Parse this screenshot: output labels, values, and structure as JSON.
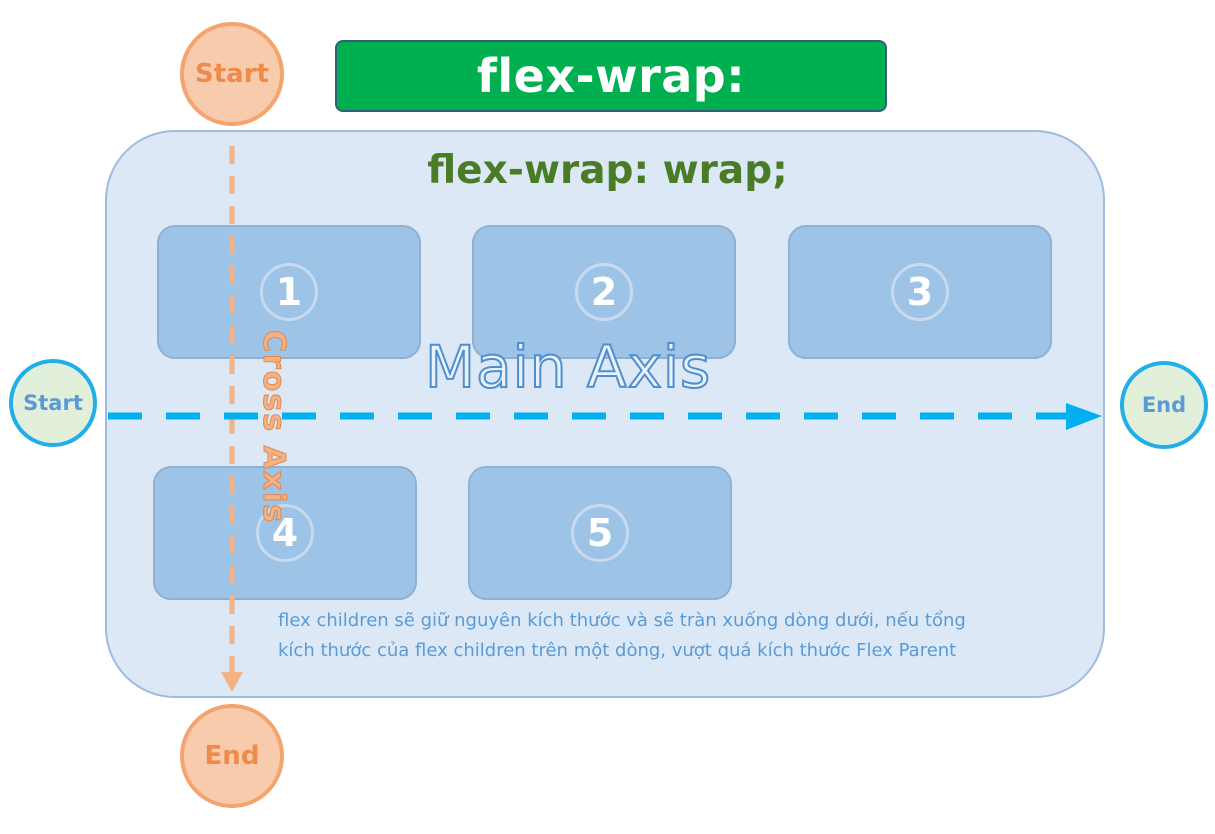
{
  "title": "flex-wrap:",
  "subtitle": "flex-wrap: wrap;",
  "children": [
    "1",
    "2",
    "3",
    "4",
    "5"
  ],
  "main_axis": {
    "label": "Main Axis",
    "start_label": "Start",
    "end_label": "End",
    "color": "#00b0f0"
  },
  "cross_axis": {
    "label": "Cross Axis",
    "start_label": "Start",
    "end_label": "End",
    "color": "#f4b183"
  },
  "caption": {
    "line1": "flex children sẽ giữ nguyên kích thước và sẽ tràn xuống dòng dưới, nếu tổng",
    "line2": "kích thước của flex children trên một dòng, vượt quá kích thước Flex Parent"
  },
  "colors": {
    "banner": "#00b050",
    "container": "#dce8f5",
    "child": "#9dc3e6",
    "subtitle": "#4a7b27"
  }
}
